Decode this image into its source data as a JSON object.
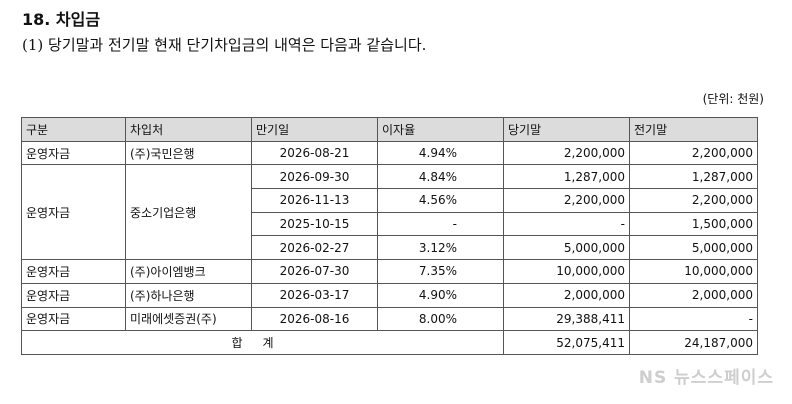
{
  "heading": "18. 차입금",
  "description": "(1) 당기말과 전기말 현재 단기차입금의 내역은 다음과 같습니다.",
  "unit": "(단위: 천원)",
  "table": {
    "headers": [
      "구분",
      "차입처",
      "만기일",
      "이자율",
      "당기말",
      "전기말"
    ],
    "groups": [
      {
        "category": "운영자금",
        "lender": "(주)국민은행",
        "rows": [
          {
            "maturity": "2026-08-21",
            "rate": "4.94%",
            "current": "2,200,000",
            "prior": "2,200,000"
          }
        ]
      },
      {
        "category": "운영자금",
        "lender": "중소기업은행",
        "rows": [
          {
            "maturity": "2026-09-30",
            "rate": "4.84%",
            "current": "1,287,000",
            "prior": "1,287,000"
          },
          {
            "maturity": "2026-11-13",
            "rate": "4.56%",
            "current": "2,200,000",
            "prior": "2,200,000"
          },
          {
            "maturity": "2025-10-15",
            "rate": "-",
            "current": "-",
            "prior": "1,500,000"
          },
          {
            "maturity": "2026-02-27",
            "rate": "3.12%",
            "current": "5,000,000",
            "prior": "5,000,000"
          }
        ]
      },
      {
        "category": "운영자금",
        "lender": "(주)아이엠뱅크",
        "rows": [
          {
            "maturity": "2026-07-30",
            "rate": "7.35%",
            "current": "10,000,000",
            "prior": "10,000,000"
          }
        ]
      },
      {
        "category": "운영자금",
        "lender": "(주)하나은행",
        "rows": [
          {
            "maturity": "2026-03-17",
            "rate": "4.90%",
            "current": "2,000,000",
            "prior": "2,000,000"
          }
        ]
      },
      {
        "category": "운영자금",
        "lender": "미래에셋증권(주)",
        "rows": [
          {
            "maturity": "2026-08-16",
            "rate": "8.00%",
            "current": "29,388,411",
            "prior": "-"
          }
        ]
      }
    ],
    "total": {
      "label": "합계",
      "current": "52,075,411",
      "prior": "24,187,000"
    }
  },
  "watermark": "NS 뉴스스페이스"
}
